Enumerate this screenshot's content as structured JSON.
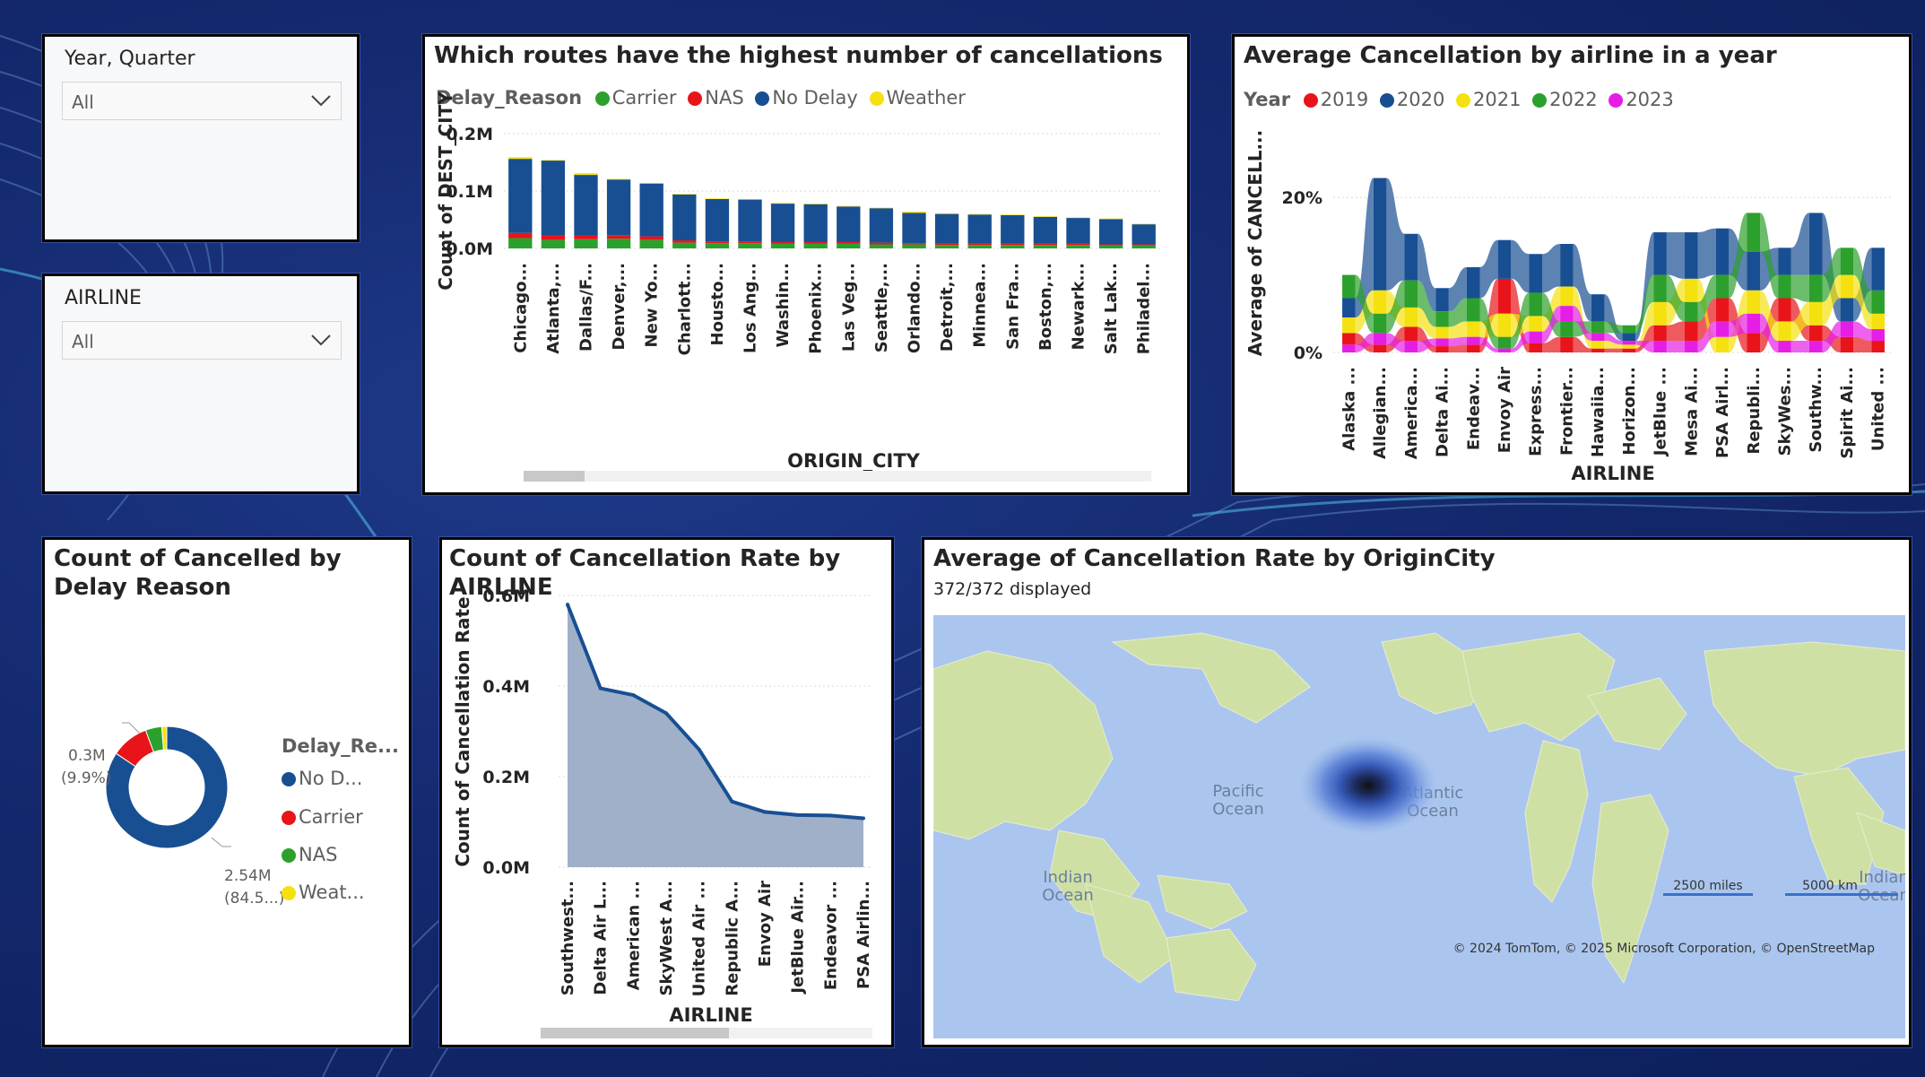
{
  "slicers": [
    {
      "title": "Year, Quarter",
      "value": "All"
    },
    {
      "title": "AIRLINE",
      "value": "All"
    }
  ],
  "colors": {
    "carrier": "#2ca02c",
    "nas": "#e8141a",
    "nodelay": "#184f93",
    "weather": "#f5e10f",
    "y2019": "#e8141a",
    "y2020": "#184f93",
    "y2021": "#f5e10f",
    "y2022": "#2ca02c",
    "y2023": "#e51ee5"
  },
  "chart_data": [
    {
      "id": "routes",
      "type": "bar",
      "title": "Which routes have the highest number of cancellations",
      "legend_title": "Delay_Reason",
      "legend_placement": "top-left",
      "xlabel": "ORIGIN_CITY",
      "ylabel": "Count of DEST_CITY",
      "ylim": [
        0,
        0.2
      ],
      "yticks": [
        "0.0M",
        "0.1M",
        "0.2M"
      ],
      "grid": true,
      "categories": [
        "Chicago...",
        "Atlanta,...",
        "Dallas/F...",
        "Denver,...",
        "New Yo...",
        "Charlott...",
        "Housto...",
        "Los Ang...",
        "Washin...",
        "Phoenix...",
        "Las Veg...",
        "Seattle,...",
        "Orlando...",
        "Detroit,...",
        "Minnea...",
        "San Fra...",
        "Boston,...",
        "Newark...",
        "Salt Lak...",
        "Philadel..."
      ],
      "series": [
        {
          "name": "Carrier",
          "values": [
            0.018,
            0.015,
            0.016,
            0.017,
            0.015,
            0.01,
            0.009,
            0.009,
            0.008,
            0.008,
            0.008,
            0.007,
            0.007,
            0.006,
            0.006,
            0.006,
            0.006,
            0.006,
            0.005,
            0.005
          ]
        },
        {
          "name": "NAS",
          "values": [
            0.009,
            0.007,
            0.006,
            0.006,
            0.006,
            0.004,
            0.003,
            0.003,
            0.003,
            0.003,
            0.003,
            0.003,
            0.002,
            0.002,
            0.002,
            0.002,
            0.002,
            0.002,
            0.002,
            0.002
          ]
        },
        {
          "name": "No Delay",
          "values": [
            0.129,
            0.131,
            0.106,
            0.097,
            0.092,
            0.08,
            0.074,
            0.073,
            0.067,
            0.066,
            0.062,
            0.06,
            0.053,
            0.052,
            0.051,
            0.05,
            0.047,
            0.045,
            0.044,
            0.035
          ]
        },
        {
          "name": "Weather",
          "values": [
            0.003,
            0.001,
            0.003,
            0.001,
            0.001,
            0.001,
            0.001,
            0.001,
            0.001,
            0.001,
            0.001,
            0.001,
            0.002,
            0.001,
            0.001,
            0.001,
            0.001,
            0.001,
            0.001,
            0.001
          ]
        }
      ]
    },
    {
      "id": "ribbon",
      "type": "area",
      "subtype": "ribbon",
      "title": "Average Cancellation by airline in a year",
      "legend_title": "Year",
      "legend_placement": "top-left",
      "xlabel": "AIRLINE",
      "ylabel": "Average of CANCELL...",
      "ylim": [
        0,
        28
      ],
      "yticks": [
        "0%",
        "20%"
      ],
      "grid": true,
      "categories": [
        "Alaska ...",
        "Allegian...",
        "America...",
        "Delta Ai...",
        "Endeav...",
        "Envoy Air",
        "Express...",
        "Frontier...",
        "Hawaiia...",
        "Horizon...",
        "JetBlue ...",
        "Mesa Ai...",
        "PSA Airl...",
        "Republi...",
        "SkyWes...",
        "Southw...",
        "Spirit Ai...",
        "United ..."
      ],
      "series": [
        {
          "name": "2019",
          "values": [
            1.5,
            1.0,
            1.8,
            0.8,
            1.0,
            4.5,
            1.2,
            2.0,
            0.5,
            0.5,
            2.0,
            2.5,
            3.0,
            2.5,
            3.0,
            2.0,
            2.0,
            1.5
          ]
        },
        {
          "name": "2020",
          "values": [
            2.5,
            14.5,
            6.0,
            3.0,
            4.0,
            5.0,
            5.0,
            5.5,
            3.5,
            1.0,
            5.5,
            6.0,
            6.0,
            5.0,
            3.5,
            8.0,
            3.0,
            5.5
          ]
        },
        {
          "name": "2021",
          "values": [
            2.0,
            3.0,
            2.5,
            1.5,
            2.0,
            3.0,
            2.0,
            2.5,
            1.0,
            0.5,
            3.0,
            3.0,
            2.0,
            3.0,
            2.5,
            3.0,
            3.0,
            2.0
          ]
        },
        {
          "name": "2022",
          "values": [
            3.0,
            2.5,
            3.5,
            2.0,
            3.0,
            1.5,
            3.0,
            2.0,
            1.5,
            1.0,
            3.5,
            2.5,
            3.0,
            5.0,
            3.0,
            3.5,
            3.5,
            3.0
          ]
        },
        {
          "name": "2023",
          "values": [
            1.0,
            1.5,
            1.5,
            1.0,
            1.0,
            0.5,
            1.5,
            2.0,
            1.0,
            0.5,
            1.5,
            1.5,
            2.0,
            2.5,
            1.5,
            1.5,
            2.0,
            1.5
          ]
        }
      ]
    },
    {
      "id": "donut",
      "type": "pie",
      "subtype": "donut",
      "title": "Count of Cancelled by Delay Reason",
      "legend_title": "Delay_Re...",
      "legend_placement": "right",
      "slices": [
        {
          "name": "No D...",
          "value": 2.54,
          "label": "2.54M",
          "pct_label": "(84.5...)"
        },
        {
          "name": "Carrier",
          "value": 0.3,
          "label": "0.3M",
          "pct_label": "(9.9%)"
        },
        {
          "name": "NAS",
          "value": 0.13
        },
        {
          "name": "Weat...",
          "value": 0.04
        }
      ]
    },
    {
      "id": "rate",
      "type": "area",
      "title": "Count of Cancellation Rate by AIRLINE",
      "xlabel": "AIRLINE",
      "ylabel": "Count of Cancellation Rate",
      "ylim": [
        0,
        0.6
      ],
      "yticks": [
        "0.0M",
        "0.2M",
        "0.4M",
        "0.6M"
      ],
      "grid": true,
      "categories": [
        "Southwest...",
        "Delta Air L...",
        "American ...",
        "SkyWest A...",
        "United Air ...",
        "Republic A...",
        "Envoy Air",
        "JetBlue Air...",
        "Endeavor ...",
        "PSA Airlin..."
      ],
      "values": [
        0.58,
        0.395,
        0.38,
        0.34,
        0.26,
        0.145,
        0.122,
        0.115,
        0.114,
        0.108
      ]
    }
  ],
  "map": {
    "title": "Average of Cancellation Rate by OriginCity",
    "info": "372/372 displayed",
    "labels": {
      "pacific": [
        "Pacific",
        "Ocean"
      ],
      "atlantic": [
        "Atlantic",
        "Ocean"
      ],
      "indian1": [
        "Indian",
        "Ocean"
      ],
      "indian2": [
        "Indian",
        "Ocean"
      ]
    },
    "scale": {
      "miles": "2500 miles",
      "km": "5000 km"
    },
    "attribution": "© 2024 TomTom, © 2025 Microsoft Corporation, © OpenStreetMap"
  }
}
